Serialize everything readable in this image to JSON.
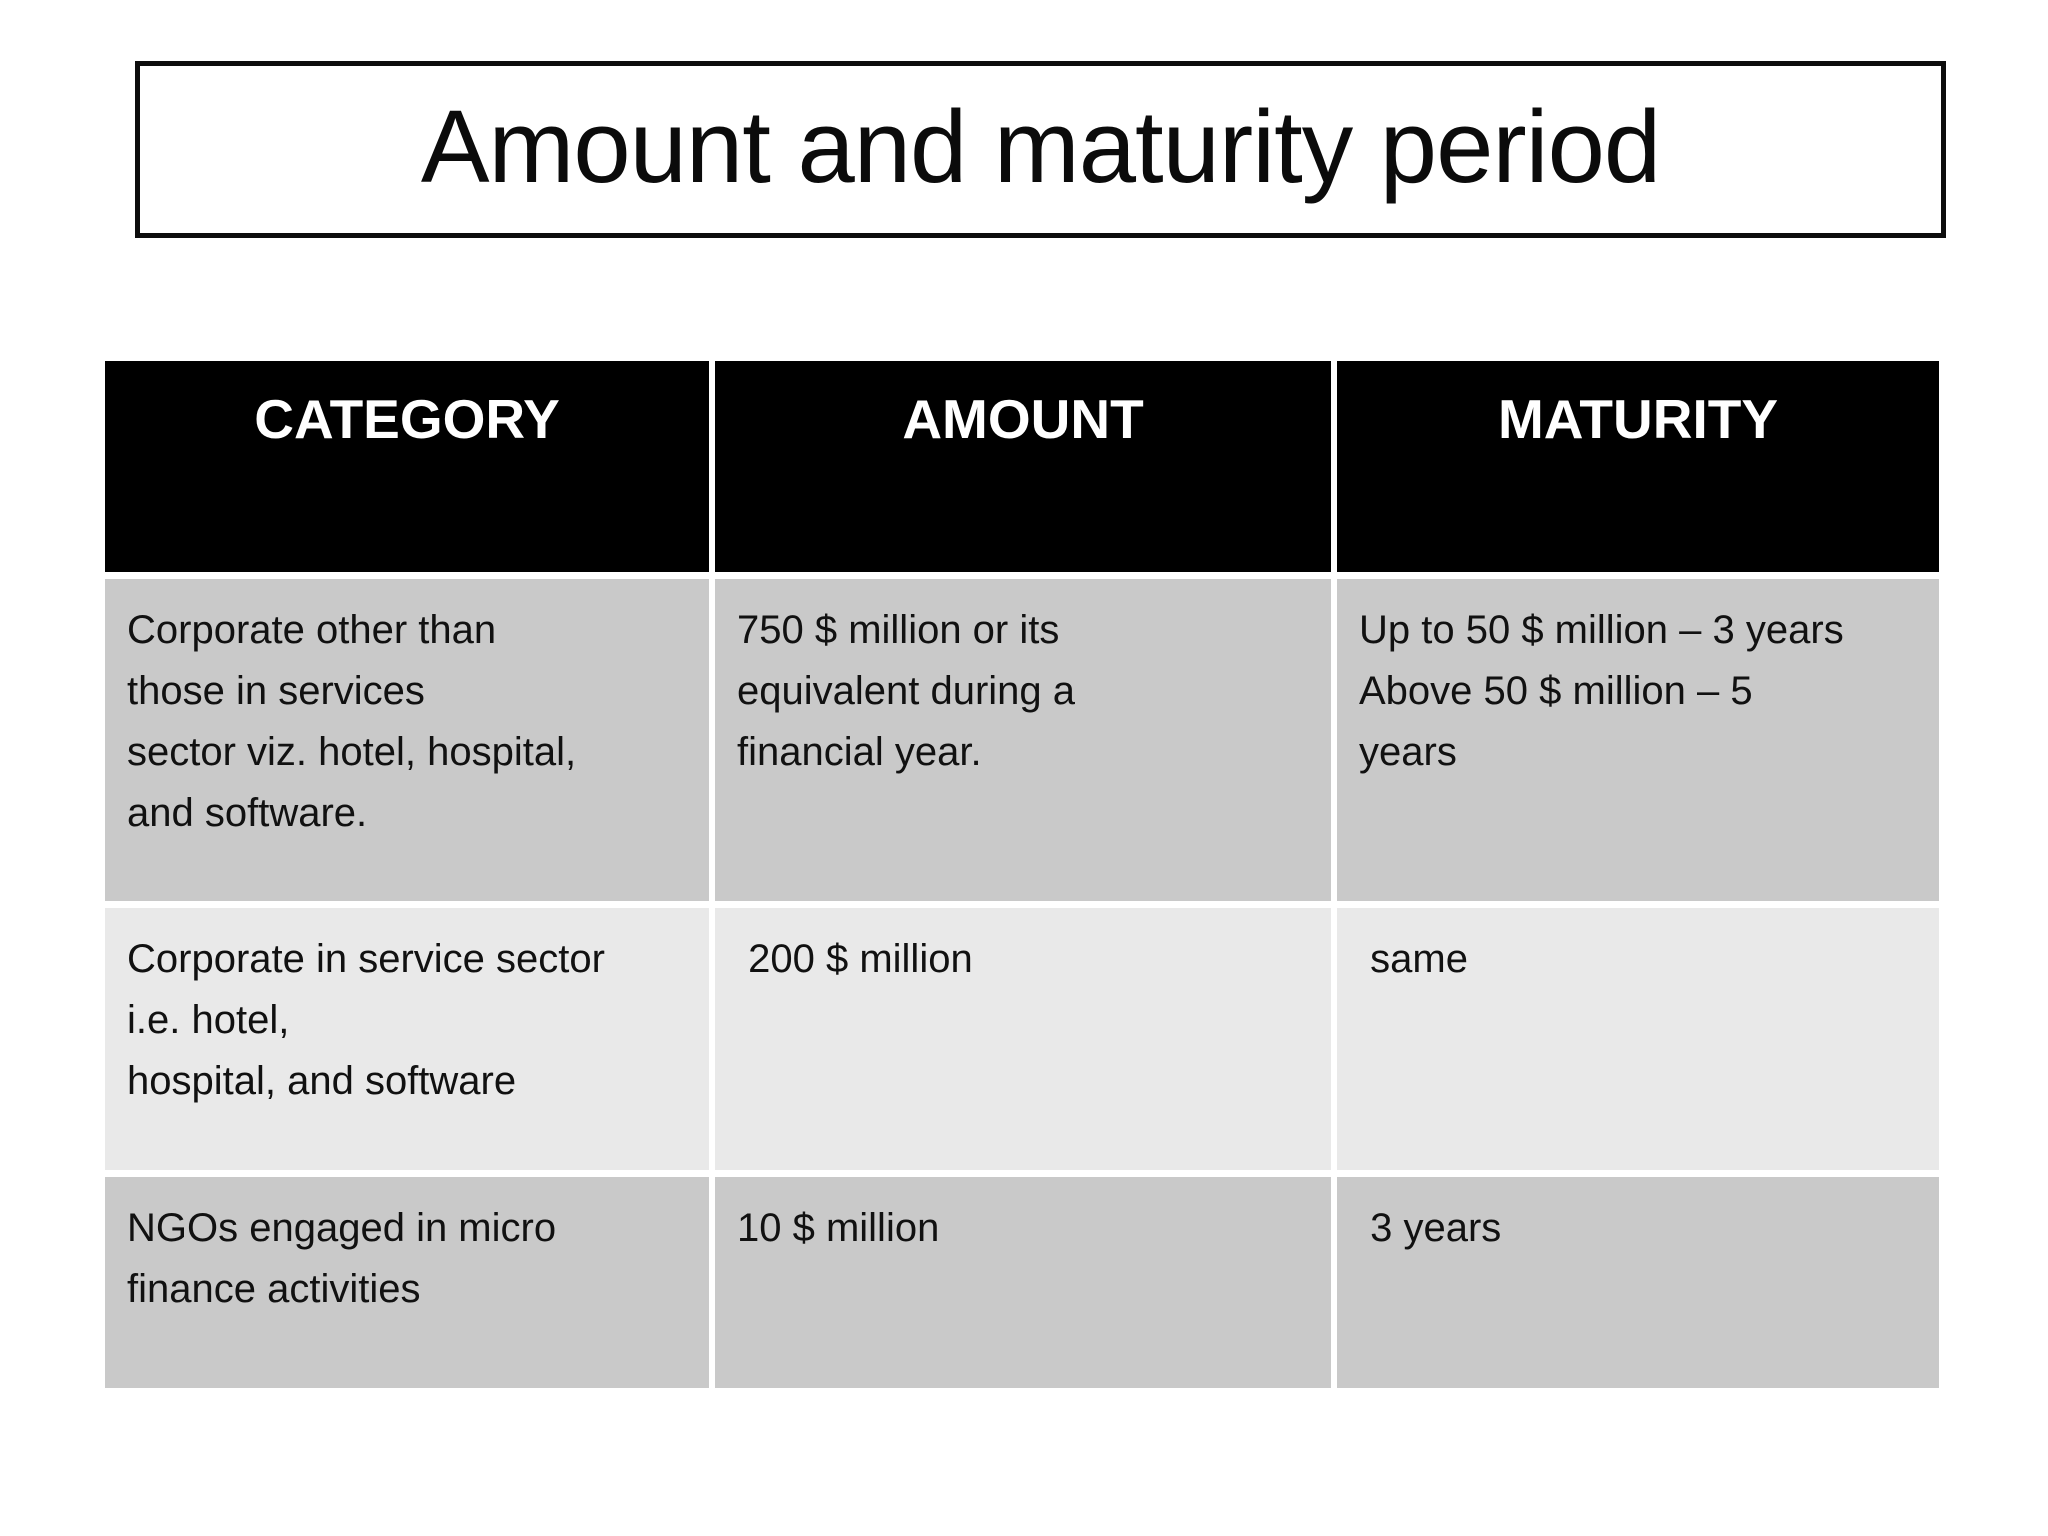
{
  "slide": {
    "title": "Amount and maturity period"
  },
  "table": {
    "headers": [
      "CATEGORY",
      "AMOUNT",
      "MATURITY"
    ],
    "rows": [
      {
        "category": "Corporate other than\nthose in services\nsector viz. hotel, hospital,\nand software.",
        "amount": "750 $ million or its\nequivalent during a\nfinancial year.",
        "maturity": "Up to 50 $ million – 3 years\nAbove 50 $ million – 5\nyears"
      },
      {
        "category": "Corporate in service sector\ni.e. hotel,\nhospital, and software",
        "amount": " 200 $ million",
        "maturity": " same"
      },
      {
        "category": "NGOs engaged in micro\nfinance activities",
        "amount": "10 $ million",
        "maturity": " 3 years"
      }
    ]
  },
  "colors": {
    "header_bg": "#000000",
    "header_text": "#ffffff",
    "row_odd_bg": "#c9c9c9",
    "row_even_bg": "#e9e9e9",
    "body_text": "#111111",
    "border_color": "#0d0d0d",
    "page_bg": "#ffffff"
  }
}
